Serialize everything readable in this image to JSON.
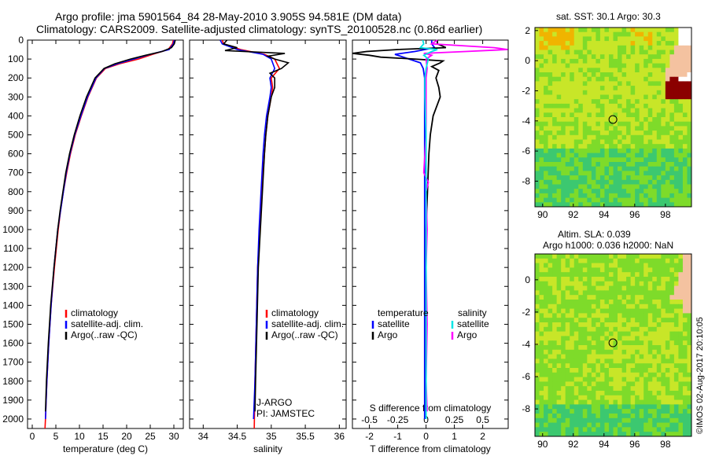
{
  "header": {
    "title_line1": "Argo profile: jma 5901564_84 28-May-2010 3.905S 94.581E (DM data)",
    "title_line2": "Climatology: CARS2009. Satellite-adjusted climatology: synTS_20100528.nc (0.86d earlier)"
  },
  "maps": {
    "sst_title": "sat. SST: 30.1 Argo: 30.3",
    "sla_title_line1": "Altim. SLA: 0.039",
    "sla_title_line2": "Argo h1000: 0.036 h2000: NaN",
    "credit": "©IMOS 02-Aug-2017 20:10:05",
    "float_location": {
      "lon": 94.581,
      "lat": -3.905
    },
    "colors": {
      "ocean_warm": "#c8e628",
      "ocean_mid": "#7edb2a",
      "ocean_cool": "#3cc870",
      "hot": "#f0b400",
      "very_hot": "#8b0000",
      "land": "#f4c2a0"
    }
  },
  "chart_data": [
    {
      "type": "line",
      "panel": "temperature",
      "xlabel": "temperature (deg C)",
      "ylabel": "",
      "xlim": [
        -1,
        32
      ],
      "ylim": [
        2050,
        0
      ],
      "xticks": [
        0,
        5,
        10,
        15,
        20,
        25,
        30
      ],
      "yticks": [
        0,
        100,
        200,
        300,
        400,
        500,
        600,
        700,
        800,
        900,
        1000,
        1100,
        1200,
        1300,
        1400,
        1500,
        1600,
        1700,
        1800,
        1900,
        2000
      ],
      "legend": [
        "climatology",
        "satellite-adj. clim.",
        "Argo(..raw -QC)"
      ],
      "colors": {
        "climatology": "#ff0000",
        "satellite": "#0000ff",
        "argo": "#000000"
      },
      "series": [
        {
          "name": "climatology",
          "depth": [
            0,
            20,
            50,
            75,
            100,
            125,
            150,
            200,
            300,
            400,
            500,
            600,
            700,
            800,
            900,
            1000,
            1200,
            1400,
            1600,
            1800,
            2000,
            2050
          ],
          "values": [
            29.9,
            29.7,
            28.8,
            25.5,
            22.5,
            18.5,
            15.5,
            13.6,
            11.8,
            10.4,
            9.1,
            8.1,
            7.3,
            6.6,
            6.0,
            5.5,
            4.7,
            4.0,
            3.5,
            3.1,
            2.8,
            2.7
          ]
        },
        {
          "name": "satellite-adj. clim.",
          "depth": [
            0,
            20,
            50,
            75,
            100,
            125,
            150,
            200,
            300,
            400,
            500,
            600,
            700,
            800,
            900,
            1000,
            1200,
            1400,
            1600,
            1800,
            2000
          ],
          "values": [
            30.1,
            29.9,
            29.0,
            25.0,
            21.5,
            18.0,
            15.3,
            13.5,
            11.7,
            10.3,
            9.0,
            8.0,
            7.2,
            6.6,
            6.0,
            5.4,
            4.6,
            4.0,
            3.5,
            3.1,
            2.8
          ]
        },
        {
          "name": "Argo(..raw -QC)",
          "depth": [
            0,
            20,
            40,
            60,
            80,
            100,
            125,
            150,
            200,
            300,
            400,
            500,
            600,
            700,
            800,
            900,
            1000,
            1200,
            1400,
            1600,
            1800,
            1960
          ],
          "values": [
            30.3,
            30.1,
            29.5,
            27.5,
            24.0,
            20.8,
            17.5,
            15.2,
            13.3,
            11.5,
            10.1,
            8.9,
            7.9,
            7.1,
            6.5,
            5.9,
            5.4,
            4.6,
            3.9,
            3.4,
            3.0,
            2.8
          ]
        }
      ]
    },
    {
      "type": "line",
      "panel": "salinity",
      "xlabel": "salinity",
      "xlim": [
        33.8,
        36.1
      ],
      "ylim": [
        2050,
        0
      ],
      "xticks": [
        34,
        34.5,
        35,
        35.5,
        36
      ],
      "legend": [
        "climatology",
        "satellite-adj. clim.",
        "Argo(..raw -QC)"
      ],
      "annotations": [
        "J-ARGO",
        "PI: JAMSTEC"
      ],
      "series": [
        {
          "name": "climatology",
          "depth": [
            0,
            20,
            50,
            75,
            100,
            150,
            200,
            250,
            300,
            400,
            500,
            600,
            800,
            1000,
            1200,
            1500,
            1800,
            2050
          ],
          "values": [
            34.28,
            34.3,
            34.55,
            34.9,
            35.05,
            35.12,
            35.0,
            35.02,
            35.0,
            34.95,
            34.92,
            34.9,
            34.86,
            34.83,
            34.8,
            34.78,
            34.76,
            34.75
          ]
        },
        {
          "name": "satellite-adj. clim.",
          "depth": [
            0,
            20,
            50,
            75,
            100,
            150,
            200,
            250,
            300,
            400,
            500,
            600,
            800,
            1000,
            1200,
            1500,
            1800,
            2000
          ],
          "values": [
            34.25,
            34.28,
            34.5,
            34.88,
            35.0,
            35.05,
            34.98,
            35.0,
            34.98,
            34.93,
            34.9,
            34.88,
            34.85,
            34.82,
            34.8,
            34.78,
            34.76,
            34.74
          ]
        },
        {
          "name": "Argo(..raw -QC)",
          "depth": [
            0,
            20,
            40,
            55,
            70,
            85,
            100,
            120,
            150,
            175,
            200,
            250,
            300,
            400,
            500,
            600,
            800,
            1000,
            1200,
            1500,
            1800,
            1960
          ],
          "values": [
            34.35,
            34.3,
            34.5,
            34.32,
            35.2,
            34.95,
            35.05,
            35.25,
            35.15,
            34.98,
            35.05,
            35.05,
            35.0,
            34.95,
            34.92,
            34.9,
            34.87,
            34.84,
            34.81,
            34.79,
            34.77,
            34.76
          ]
        }
      ]
    },
    {
      "type": "line",
      "panel": "difference",
      "xlabel": "T difference from climatology",
      "x2label": "S difference from climatology",
      "xlim": [
        -2.6,
        2.9
      ],
      "x2lim": [
        -0.65,
        0.725
      ],
      "ylim": [
        2050,
        0
      ],
      "xticks": [
        -2,
        -1,
        0,
        1,
        2
      ],
      "x2ticks": [
        -0.5,
        -0.25,
        0,
        0.25,
        0.5
      ],
      "x2ticklabels": [
        "-0.5",
        "-0.25",
        "0",
        "0.25",
        "0.5"
      ],
      "legend_temperature_title": "temperature",
      "legend_salinity_title": "salinity",
      "legend": [
        "satellite",
        "Argo",
        "satellite",
        "Argo"
      ],
      "colors": {
        "T_sat": "#0000ff",
        "T_argo": "#000000",
        "S_sat": "#00e6e6",
        "S_argo": "#ff00ff"
      },
      "series": [
        {
          "name": "T satellite",
          "depth": [
            0,
            20,
            40,
            60,
            75,
            90,
            100,
            120,
            150,
            200,
            300,
            400,
            600,
            800,
            1000,
            1200,
            1400,
            1600,
            1800,
            2000
          ],
          "values": [
            0.2,
            0.2,
            0.3,
            -0.4,
            -1.1,
            -0.8,
            -0.6,
            -0.2,
            -0.1,
            -0.05,
            -0.05,
            -0.05,
            -0.05,
            -0.05,
            -0.05,
            -0.05,
            -0.05,
            -0.05,
            -0.05,
            -0.05
          ]
        },
        {
          "name": "T Argo",
          "depth": [
            0,
            20,
            40,
            50,
            60,
            70,
            80,
            90,
            100,
            110,
            120,
            140,
            160,
            200,
            250,
            300,
            400,
            500,
            600,
            800,
            1000,
            1400,
            1800,
            1960
          ],
          "values": [
            0.4,
            0.4,
            0.7,
            -1.0,
            -2.1,
            -2.6,
            -2.0,
            -1.6,
            -0.4,
            0.6,
            0.5,
            0.2,
            0.45,
            0.35,
            0.45,
            0.5,
            0.25,
            0.15,
            0.1,
            0.05,
            0.0,
            0.0,
            0.0,
            0.0
          ]
        },
        {
          "name": "S satellite",
          "depth": [
            0,
            20,
            40,
            50,
            60,
            80,
            100,
            150,
            200,
            300,
            500,
            800,
            1000,
            1500,
            2000
          ],
          "values": [
            -0.03,
            -0.02,
            -0.05,
            0.1,
            0.05,
            -0.02,
            0.02,
            0.0,
            -0.01,
            -0.01,
            0.0,
            0.0,
            0.0,
            0.0,
            0.0
          ]
        },
        {
          "name": "S Argo",
          "depth": [
            0,
            20,
            40,
            50,
            60,
            70,
            80,
            100,
            150,
            200,
            300,
            500,
            700,
            750,
            800,
            1000,
            1200,
            1500,
            1800,
            1960
          ],
          "values": [
            0.1,
            0.05,
            0.6,
            0.72,
            0.35,
            -0.02,
            0.05,
            0.0,
            0.01,
            0.0,
            0.0,
            0.0,
            -0.02,
            0.02,
            0.0,
            0.01,
            0.0,
            0.01,
            0.0,
            0.01
          ]
        }
      ]
    },
    {
      "type": "heatmap",
      "panel": "sst-map",
      "xticks": [
        90,
        92,
        94,
        96,
        98
      ],
      "yticks": [
        2,
        0,
        -2,
        -4,
        -6,
        -8
      ],
      "xlim": [
        89.5,
        99.7
      ],
      "ylim": [
        -9.7,
        2.2
      ]
    },
    {
      "type": "heatmap",
      "panel": "sla-map",
      "xticks": [
        90,
        92,
        94,
        96,
        98
      ],
      "yticks": [
        0,
        -2,
        -4,
        -6,
        -8
      ],
      "xlim": [
        89.5,
        99.7
      ],
      "ylim": [
        -9.7,
        1.6
      ]
    }
  ]
}
